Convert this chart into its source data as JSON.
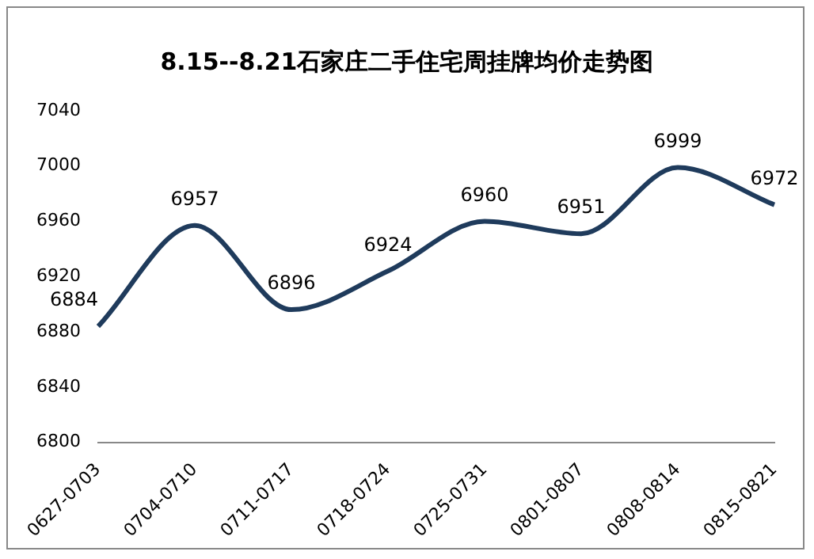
{
  "chart_data": {
    "type": "line",
    "title": "8.15--8.21石家庄二手住宅周挂牌均价走势图",
    "categories": [
      "0627-0703",
      "0704-0710",
      "0711-0717",
      "0718-0724",
      "0725-0731",
      "0801-0807",
      "0808-0814",
      "0815-0821"
    ],
    "series": [
      {
        "color": "#1f3b5c",
        "values": [
          6884,
          6957,
          6896,
          6924,
          6960,
          6951,
          6999,
          6972
        ]
      }
    ],
    "ylim": [
      6800,
      7040
    ],
    "yticks": [
      6800,
      6840,
      6880,
      6920,
      6960,
      7000,
      7040
    ],
    "grid": false,
    "legend": false,
    "marker": "none",
    "line_style": "solid",
    "data_labels": true
  }
}
